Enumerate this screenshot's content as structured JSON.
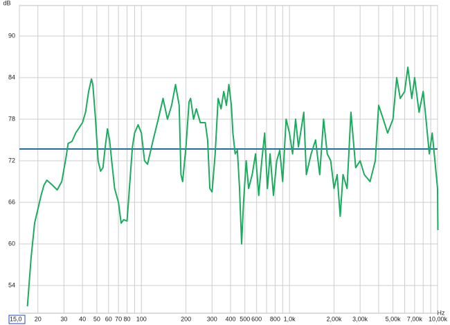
{
  "chart_data": {
    "type": "line",
    "x_label": "Hz",
    "y_label": "dB",
    "log_x": true,
    "grid": true,
    "xlim": [
      15,
      10000
    ],
    "ylim": [
      50,
      94.4
    ],
    "xticks": [
      {
        "value": 15,
        "label": "15,0"
      },
      20,
      30,
      40,
      50,
      60,
      70,
      80,
      100,
      200,
      300,
      400,
      500,
      600,
      800,
      {
        "value": 1000,
        "label": "1,0k"
      },
      {
        "value": 2000,
        "label": "2,00k"
      },
      {
        "value": 3000,
        "label": "3,00k"
      },
      {
        "value": 5000,
        "label": "5,00k"
      },
      {
        "value": 7000,
        "label": "7,00k"
      },
      {
        "value": 10000,
        "label": "10,00k"
      }
    ],
    "xminor": [
      90,
      700,
      900,
      4000,
      6000,
      8000,
      9000
    ],
    "yticks": [
      54,
      60,
      66,
      72,
      78,
      84,
      90
    ],
    "reference_line": {
      "value": 73.7,
      "color": "#1f6fa5"
    },
    "x": [
      17,
      18,
      19,
      20,
      21,
      22,
      23,
      25,
      27,
      29,
      31,
      32,
      34,
      36,
      40,
      42,
      44,
      46,
      47,
      49,
      51,
      53,
      55,
      57,
      59,
      61,
      63,
      66,
      70,
      73,
      76,
      80,
      83,
      87,
      90,
      95,
      100,
      105,
      110,
      120,
      130,
      140,
      150,
      160,
      170,
      180,
      185,
      190,
      200,
      210,
      215,
      225,
      235,
      250,
      270,
      280,
      290,
      300,
      315,
      330,
      345,
      360,
      375,
      390,
      405,
      415,
      430,
      445,
      460,
      475,
      490,
      510,
      530,
      560,
      590,
      620,
      650,
      680,
      710,
      740,
      780,
      820,
      860,
      900,
      950,
      1000,
      1050,
      1100,
      1150,
      1250,
      1300,
      1400,
      1500,
      1600,
      1700,
      1800,
      1900,
      2000,
      2100,
      2200,
      2300,
      2450,
      2600,
      2800,
      3000,
      3200,
      3500,
      3800,
      4000,
      4300,
      4600,
      5000,
      5300,
      5600,
      6000,
      6300,
      6700,
      7000,
      7500,
      8000,
      8400,
      8800,
      9200,
      9600,
      10000,
      10050
    ],
    "series": [
      {
        "color": "#1bab5e",
        "values": [
          51,
          58,
          63,
          65,
          67,
          68.5,
          69.2,
          68.5,
          67.8,
          69,
          72.5,
          74.5,
          74.8,
          76,
          77.5,
          79,
          82,
          83.8,
          83,
          78,
          72,
          70.5,
          71,
          74,
          76.6,
          75,
          72,
          68,
          66,
          63,
          63.5,
          63.3,
          68,
          74,
          76,
          77.2,
          76,
          72,
          71.5,
          75,
          78,
          81,
          78,
          80,
          83,
          80,
          70,
          69,
          74,
          80.5,
          81,
          78,
          79.5,
          77.5,
          77.5,
          75,
          68,
          67.5,
          73,
          81,
          79.5,
          82,
          80,
          83,
          80,
          76,
          73,
          73.5,
          68,
          60,
          66,
          72,
          68,
          70,
          73,
          67,
          72,
          76,
          68,
          73,
          67,
          72,
          73.5,
          69,
          78,
          76,
          73,
          78,
          74,
          79,
          70,
          73,
          75,
          70,
          78,
          73,
          72,
          68,
          70,
          64,
          70,
          68,
          79,
          71,
          72,
          70,
          69,
          72,
          80,
          78,
          76,
          78,
          84,
          81,
          82,
          85.5,
          81,
          84,
          79,
          82,
          77.5,
          73,
          76,
          72,
          68,
          62
        ]
      }
    ]
  }
}
